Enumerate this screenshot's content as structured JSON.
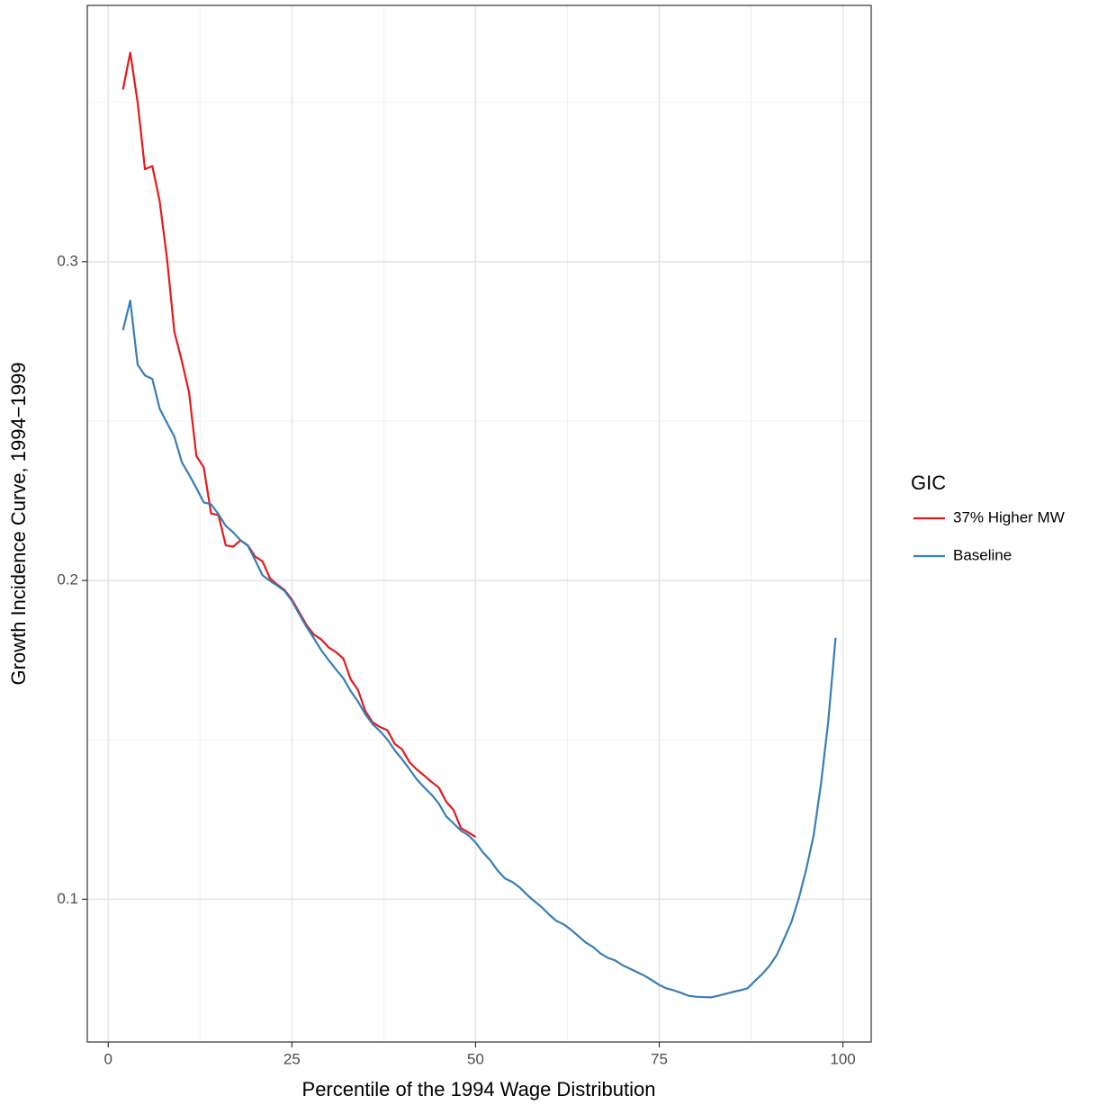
{
  "chart_data": {
    "type": "line",
    "x_label": "Percentile of the 1994 Wage Distribution",
    "y_label": "Growth Incidence Curve, 1994−1999",
    "legend_title": "GIC",
    "legend_position": "right",
    "grid": true,
    "minor_grid": true,
    "xlim": [
      -2.85,
      103.85
    ],
    "xticks": [
      0,
      25,
      50,
      75,
      100
    ],
    "ylim": [
      0.0552,
      0.3804
    ],
    "yticks": [
      0.1,
      0.2,
      0.3
    ],
    "series": [
      {
        "name": "37% Higher MW",
        "color": "#e41a1c",
        "x": [
          2,
          3,
          4,
          5,
          6,
          7,
          8,
          9,
          10,
          11,
          12,
          13,
          14,
          15,
          16,
          17,
          18,
          19,
          20,
          21,
          22,
          23,
          24,
          25,
          26,
          27,
          28,
          29,
          30,
          31,
          32,
          33,
          34,
          35,
          36,
          37,
          38,
          39,
          40,
          41,
          42,
          43,
          44,
          45,
          46,
          47,
          48,
          49,
          50
        ],
        "values": [
          0.354,
          0.3656,
          0.35,
          0.329,
          0.33,
          0.319,
          0.301,
          0.278,
          0.269,
          0.259,
          0.239,
          0.2355,
          0.221,
          0.2205,
          0.211,
          0.2106,
          0.2126,
          0.211,
          0.2075,
          0.206,
          0.2007,
          0.1987,
          0.197,
          0.194,
          0.19,
          0.186,
          0.183,
          0.1815,
          0.179,
          0.1775,
          0.1755,
          0.169,
          0.1656,
          0.159,
          0.1555,
          0.154,
          0.153,
          0.1487,
          0.147,
          0.143,
          0.1407,
          0.1388,
          0.1368,
          0.135,
          0.1306,
          0.128,
          0.1223,
          0.121,
          0.1195
        ]
      },
      {
        "name": "Baseline",
        "color": "#377eb8",
        "x": [
          2,
          3,
          4,
          5,
          6,
          7,
          8,
          9,
          10,
          11,
          12,
          13,
          14,
          15,
          16,
          17,
          18,
          19,
          20,
          21,
          22,
          23,
          24,
          25,
          26,
          27,
          28,
          29,
          30,
          31,
          32,
          33,
          34,
          35,
          36,
          37,
          38,
          39,
          40,
          41,
          42,
          43,
          44,
          45,
          46,
          47,
          48,
          49,
          50,
          51,
          52,
          53,
          54,
          55,
          56,
          57,
          58,
          59,
          60,
          61,
          62,
          63,
          64,
          65,
          66,
          67,
          68,
          69,
          70,
          71,
          72,
          73,
          74,
          75,
          76,
          77,
          78,
          79,
          80,
          81,
          82,
          83,
          84,
          85,
          86,
          87,
          88,
          89,
          90,
          91,
          92,
          93,
          94,
          95,
          96,
          97,
          98,
          99
        ],
        "values": [
          0.2785,
          0.2878,
          0.2677,
          0.2643,
          0.2632,
          0.2539,
          0.2494,
          0.2451,
          0.2372,
          0.2332,
          0.229,
          0.2245,
          0.2239,
          0.2208,
          0.2171,
          0.2151,
          0.2126,
          0.2109,
          0.2064,
          0.2016,
          0.1999,
          0.1984,
          0.1967,
          0.1936,
          0.1894,
          0.1854,
          0.1818,
          0.1781,
          0.175,
          0.1721,
          0.1693,
          0.1653,
          0.162,
          0.158,
          0.1549,
          0.1527,
          0.1501,
          0.1467,
          0.1439,
          0.1408,
          0.1376,
          0.1351,
          0.1328,
          0.13,
          0.126,
          0.1238,
          0.1215,
          0.1201,
          0.1178,
          0.1147,
          0.1122,
          0.109,
          0.1065,
          0.1054,
          0.1037,
          0.1014,
          0.0994,
          0.0975,
          0.0952,
          0.0932,
          0.0921,
          0.0904,
          0.0884,
          0.0864,
          0.085,
          0.083,
          0.0816,
          0.0808,
          0.0793,
          0.0782,
          0.0771,
          0.076,
          0.0746,
          0.0731,
          0.072,
          0.0714,
          0.0706,
          0.0697,
          0.0694,
          0.0693,
          0.0692,
          0.0697,
          0.0703,
          0.0709,
          0.0714,
          0.072,
          0.0743,
          0.0765,
          0.0791,
          0.0825,
          0.0876,
          0.0929,
          0.1003,
          0.1093,
          0.1198,
          0.1359,
          0.1557,
          0.182
        ]
      }
    ]
  }
}
